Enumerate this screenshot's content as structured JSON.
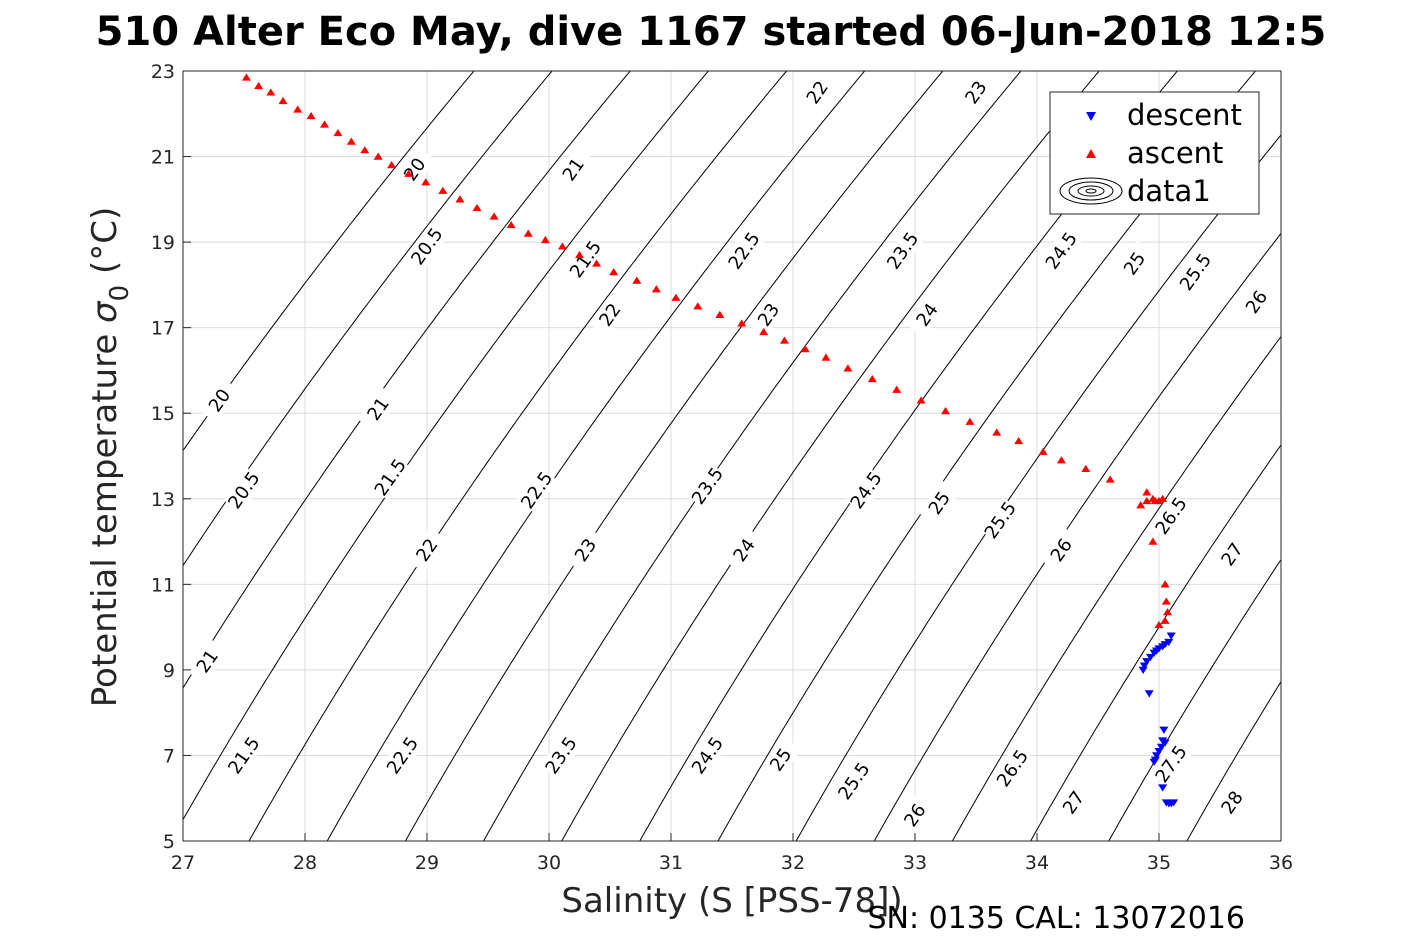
{
  "chart_data": {
    "type": "scatter",
    "title": "510 Alter Eco May, dive 1167 started 06-Jun-2018 12:5",
    "xlabel": "Salinity (S [PSS-78])",
    "ylabel": "Potential temperature σ₀ (°C)",
    "ylabel_main": "Potential temperature ",
    "ylabel_sigma": "σ",
    "ylabel_sub": "0",
    "ylabel_unit": " (°C)",
    "xlim": [
      27,
      36
    ],
    "ylim": [
      5,
      23
    ],
    "xticks": [
      "27",
      "28",
      "29",
      "30",
      "31",
      "32",
      "33",
      "34",
      "35",
      "36"
    ],
    "yticks": [
      "5",
      "7",
      "9",
      "11",
      "13",
      "15",
      "17",
      "19",
      "21",
      "23"
    ],
    "grid": true,
    "legend_position": "top-right",
    "footnote": "SN: 0135  CAL: 13072016",
    "contour_levels": [
      20,
      20.5,
      21,
      21.5,
      22,
      22.5,
      23,
      23.5,
      24,
      24.5,
      25,
      25.5,
      26,
      26.5,
      27,
      27.5,
      28
    ],
    "contour_labels": [
      {
        "text": "20",
        "x": 28.9,
        "y": 20.7
      },
      {
        "text": "20",
        "x": 27.3,
        "y": 15.3
      },
      {
        "text": "20.5",
        "x": 29.0,
        "y": 18.9
      },
      {
        "text": "20.5",
        "x": 27.5,
        "y": 13.2
      },
      {
        "text": "21",
        "x": 30.2,
        "y": 20.7
      },
      {
        "text": "21",
        "x": 28.6,
        "y": 15.1
      },
      {
        "text": "21",
        "x": 27.2,
        "y": 9.2
      },
      {
        "text": "21.5",
        "x": 30.3,
        "y": 18.6
      },
      {
        "text": "21.5",
        "x": 28.7,
        "y": 13.5
      },
      {
        "text": "21.5",
        "x": 27.5,
        "y": 7.0
      },
      {
        "text": "22",
        "x": 32.2,
        "y": 22.5
      },
      {
        "text": "22",
        "x": 30.5,
        "y": 17.3
      },
      {
        "text": "22",
        "x": 29.0,
        "y": 11.8
      },
      {
        "text": "22.5",
        "x": 31.6,
        "y": 18.8
      },
      {
        "text": "22.5",
        "x": 29.9,
        "y": 13.2
      },
      {
        "text": "22.5",
        "x": 28.8,
        "y": 7.0
      },
      {
        "text": "23",
        "x": 33.5,
        "y": 22.5
      },
      {
        "text": "23",
        "x": 31.8,
        "y": 17.3
      },
      {
        "text": "23",
        "x": 30.3,
        "y": 11.8
      },
      {
        "text": "23.5",
        "x": 32.9,
        "y": 18.8
      },
      {
        "text": "23.5",
        "x": 31.3,
        "y": 13.3
      },
      {
        "text": "23.5",
        "x": 30.1,
        "y": 7.0
      },
      {
        "text": "24",
        "x": 33.1,
        "y": 17.3
      },
      {
        "text": "24",
        "x": 31.6,
        "y": 11.8
      },
      {
        "text": "24.5",
        "x": 34.2,
        "y": 18.8
      },
      {
        "text": "24.5",
        "x": 32.6,
        "y": 13.2
      },
      {
        "text": "24.5",
        "x": 31.3,
        "y": 7.0
      },
      {
        "text": "25",
        "x": 34.8,
        "y": 18.5
      },
      {
        "text": "25",
        "x": 33.2,
        "y": 12.9
      },
      {
        "text": "25",
        "x": 31.9,
        "y": 6.9
      },
      {
        "text": "25.5",
        "x": 35.3,
        "y": 18.3
      },
      {
        "text": "25.5",
        "x": 33.7,
        "y": 12.5
      },
      {
        "text": "25.5",
        "x": 32.5,
        "y": 6.4
      },
      {
        "text": "26",
        "x": 35.8,
        "y": 17.6
      },
      {
        "text": "26",
        "x": 34.2,
        "y": 11.8
      },
      {
        "text": "26",
        "x": 33.0,
        "y": 5.6
      },
      {
        "text": "26.5",
        "x": 35.1,
        "y": 12.6
      },
      {
        "text": "26.5",
        "x": 33.8,
        "y": 6.7
      },
      {
        "text": "27",
        "x": 35.6,
        "y": 11.7
      },
      {
        "text": "27",
        "x": 34.3,
        "y": 5.9
      },
      {
        "text": "27.5",
        "x": 35.1,
        "y": 6.8
      },
      {
        "text": "28",
        "x": 35.6,
        "y": 5.9
      }
    ],
    "series": [
      {
        "name": "descent",
        "color": "#0000ff",
        "marker": "triangle-down",
        "points": [
          [
            35.1,
            9.8
          ],
          [
            35.08,
            9.65
          ],
          [
            35.05,
            9.6
          ],
          [
            35.03,
            9.55
          ],
          [
            35.0,
            9.5
          ],
          [
            34.98,
            9.45
          ],
          [
            34.96,
            9.4
          ],
          [
            34.93,
            9.3
          ],
          [
            34.9,
            9.2
          ],
          [
            34.88,
            9.1
          ],
          [
            34.87,
            9.0
          ],
          [
            34.92,
            8.45
          ],
          [
            35.04,
            7.6
          ],
          [
            35.03,
            7.35
          ],
          [
            35.05,
            7.3
          ],
          [
            35.02,
            7.2
          ],
          [
            35.0,
            7.1
          ],
          [
            34.98,
            7.0
          ],
          [
            34.97,
            6.9
          ],
          [
            34.96,
            6.85
          ],
          [
            35.03,
            6.25
          ],
          [
            35.06,
            5.9
          ],
          [
            35.08,
            5.88
          ],
          [
            35.1,
            5.88
          ],
          [
            35.12,
            5.9
          ]
        ]
      },
      {
        "name": "ascent",
        "color": "#ff0000",
        "marker": "triangle-up",
        "points": [
          [
            27.52,
            22.85
          ],
          [
            27.62,
            22.65
          ],
          [
            27.72,
            22.5
          ],
          [
            27.82,
            22.3
          ],
          [
            27.94,
            22.1
          ],
          [
            28.05,
            21.95
          ],
          [
            28.16,
            21.75
          ],
          [
            28.27,
            21.55
          ],
          [
            28.38,
            21.35
          ],
          [
            28.49,
            21.15
          ],
          [
            28.6,
            21.0
          ],
          [
            28.71,
            20.8
          ],
          [
            28.85,
            20.6
          ],
          [
            28.99,
            20.4
          ],
          [
            29.13,
            20.2
          ],
          [
            29.27,
            20.0
          ],
          [
            29.41,
            19.8
          ],
          [
            29.55,
            19.6
          ],
          [
            29.69,
            19.4
          ],
          [
            29.83,
            19.2
          ],
          [
            29.97,
            19.05
          ],
          [
            30.11,
            18.9
          ],
          [
            30.25,
            18.7
          ],
          [
            30.39,
            18.5
          ],
          [
            30.53,
            18.3
          ],
          [
            30.72,
            18.1
          ],
          [
            30.88,
            17.9
          ],
          [
            31.04,
            17.7
          ],
          [
            31.22,
            17.5
          ],
          [
            31.4,
            17.3
          ],
          [
            31.58,
            17.1
          ],
          [
            31.76,
            16.9
          ],
          [
            31.93,
            16.7
          ],
          [
            32.1,
            16.5
          ],
          [
            32.27,
            16.3
          ],
          [
            32.45,
            16.05
          ],
          [
            32.65,
            15.8
          ],
          [
            32.85,
            15.55
          ],
          [
            33.05,
            15.3
          ],
          [
            33.25,
            15.05
          ],
          [
            33.45,
            14.8
          ],
          [
            33.67,
            14.55
          ],
          [
            33.85,
            14.35
          ],
          [
            34.05,
            14.1
          ],
          [
            34.2,
            13.9
          ],
          [
            34.4,
            13.7
          ],
          [
            34.6,
            13.45
          ],
          [
            34.85,
            12.85
          ],
          [
            34.9,
            12.95
          ],
          [
            34.95,
            13.0
          ],
          [
            34.97,
            12.95
          ],
          [
            35.0,
            12.95
          ],
          [
            35.03,
            13.0
          ],
          [
            34.9,
            13.15
          ],
          [
            34.95,
            12.0
          ],
          [
            35.05,
            11.0
          ],
          [
            35.06,
            10.6
          ],
          [
            35.07,
            10.35
          ],
          [
            35.05,
            10.15
          ],
          [
            35.0,
            10.05
          ]
        ]
      },
      {
        "name": "data1",
        "color": "#000000",
        "marker": "contour",
        "points": []
      }
    ]
  }
}
